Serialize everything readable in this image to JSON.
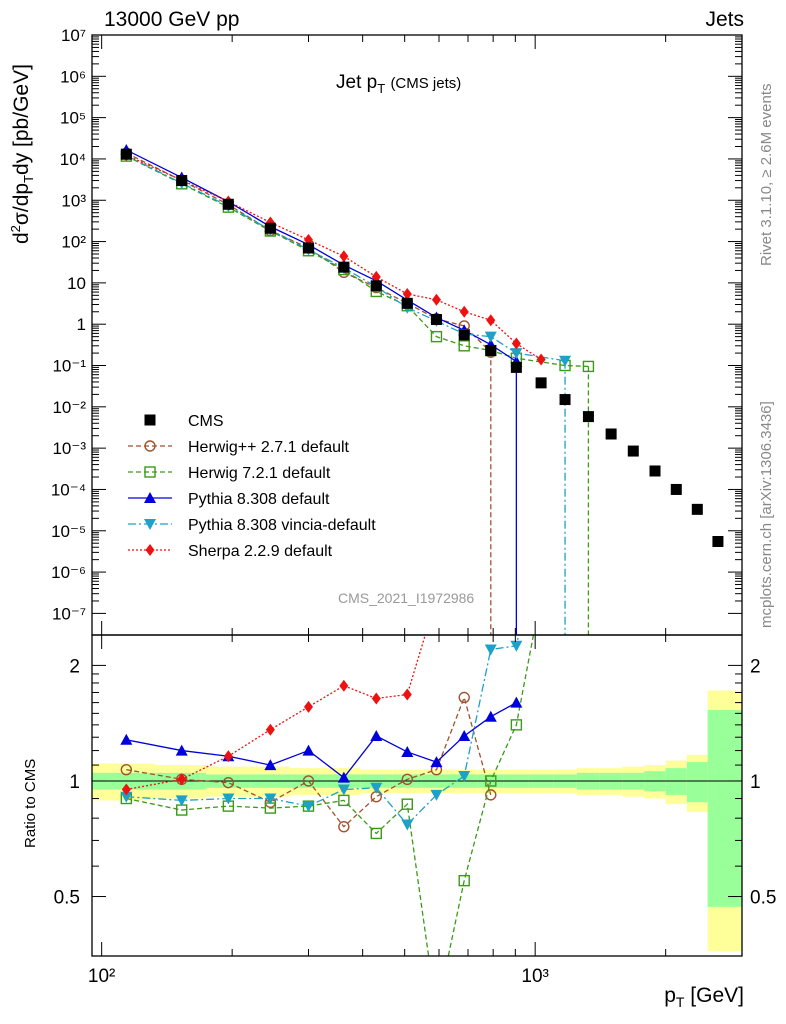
{
  "header": {
    "left": "13000 GeV pp",
    "right": "Jets"
  },
  "side": {
    "top": "Rivet 3.1.10, ≥ 2.6M events",
    "bottom": "mcplots.cern.ch [arXiv:1306.3436]"
  },
  "axes": {
    "ylabel_top": "d²σ/dp_T dy [pb/GeV]",
    "ylabel_bottom": "Ratio to CMS",
    "xlabel": "p_T [GeV]"
  },
  "plot_title": {
    "main": "Jet p",
    "sub": "T",
    "extra": "(CMS jets)"
  },
  "analysis_id": "CMS_2021_I1972986",
  "colors": {
    "cms": "#000000",
    "herwigpp": "#a0522d",
    "herwig7": "#3a9a1a",
    "pythia": "#0000dd",
    "vincia": "#1ea0c8",
    "sherpa": "#ee1111",
    "band_outer": "#ffff99",
    "band_inner": "#99ff99"
  },
  "chart_data": {
    "type": "line",
    "x_scale": "log",
    "xlim": [
      95,
      3000
    ],
    "x_ticks": [
      "10²",
      "10³"
    ],
    "top": {
      "y_scale": "log",
      "ylim": [
        3e-08,
        10000000.0
      ],
      "y_ticks": [
        "10⁻⁷",
        "10⁻⁶",
        "10⁻⁵",
        "10⁻⁴",
        "10⁻³",
        "10⁻²",
        "10⁻¹",
        "1",
        "10",
        "10²",
        "10³",
        "10⁴",
        "10⁵",
        "10⁶",
        "10⁷"
      ]
    },
    "bottom": {
      "ylim": [
        0.35,
        2.4
      ],
      "y_ticks": [
        "0.5",
        "1",
        "2"
      ]
    },
    "legend_position": "lower-left",
    "series": [
      {
        "name": "CMS",
        "key": "cms",
        "x": [
          114,
          153,
          196,
          245,
          300,
          362,
          430,
          507,
          592,
          686,
          790,
          905,
          1032,
          1172,
          1327,
          1497,
          1684,
          1890,
          2116,
          2366,
          2640
        ],
        "y": [
          13000,
          3000,
          800,
          210,
          70,
          24,
          8.5,
          3.2,
          1.3,
          0.55,
          0.23,
          0.09,
          0.038,
          0.015,
          0.0058,
          0.0022,
          0.00085,
          0.00028,
          0.0001,
          3.3e-05,
          5.5e-06
        ],
        "ratio": [
          1,
          1,
          1,
          1,
          1,
          1,
          1,
          1,
          1,
          1,
          1,
          1,
          1,
          1,
          1,
          1,
          1,
          1,
          1,
          1,
          1
        ]
      },
      {
        "name": "Herwig++ 2.7.1 default",
        "key": "herwigpp",
        "x": [
          114,
          153,
          196,
          245,
          300,
          362,
          430,
          507,
          592,
          686,
          790
        ],
        "y": [
          13900,
          3000,
          790,
          185,
          70,
          18,
          7.7,
          3.2,
          1.35,
          0.91,
          0.21
        ],
        "ratio": [
          1.07,
          1.01,
          0.99,
          0.88,
          1.0,
          0.76,
          0.91,
          1.01,
          1.07,
          1.65,
          0.92
        ]
      },
      {
        "name": "Herwig 7.2.1 default",
        "key": "herwig7",
        "x": [
          114,
          153,
          196,
          245,
          300,
          362,
          430,
          507,
          592,
          686,
          790,
          905,
          1172,
          1327
        ],
        "y": [
          11700,
          2500,
          680,
          180,
          60,
          21,
          6.2,
          2.8,
          0.5,
          0.3,
          0.23,
          0.15,
          0.1,
          0.095
        ],
        "ratio": [
          0.9,
          0.84,
          0.86,
          0.85,
          0.86,
          0.89,
          0.73,
          0.87,
          0.25,
          0.55,
          1.0,
          1.4,
          6.5,
          16
        ]
      },
      {
        "name": "Pythia 8.308 default",
        "key": "pythia",
        "x": [
          114,
          153,
          196,
          245,
          300,
          362,
          430,
          507,
          592,
          686,
          790,
          905
        ],
        "y": [
          16500,
          3550,
          920,
          230,
          84,
          27,
          11.2,
          3.85,
          1.45,
          0.71,
          0.32,
          0.125
        ],
        "ratio": [
          1.28,
          1.2,
          1.16,
          1.1,
          1.2,
          1.02,
          1.31,
          1.19,
          1.12,
          1.31,
          1.47,
          1.6
        ]
      },
      {
        "name": "Pythia 8.308 vincia-default",
        "key": "vincia",
        "x": [
          114,
          153,
          196,
          245,
          300,
          362,
          430,
          507,
          592,
          686,
          790,
          905,
          1172
        ],
        "y": [
          12000,
          2600,
          720,
          190,
          64,
          23,
          8.1,
          2.5,
          1.2,
          0.58,
          0.5,
          0.2,
          0.13
        ],
        "ratio": [
          0.91,
          0.89,
          0.9,
          0.9,
          0.86,
          0.95,
          0.96,
          0.77,
          0.92,
          1.03,
          2.2,
          2.25,
          8.5
        ]
      },
      {
        "name": "Sherpa 2.2.9 default",
        "key": "sherpa",
        "x": [
          114,
          153,
          196,
          245,
          300,
          362,
          430,
          507,
          592,
          686,
          790,
          905,
          1032
        ],
        "y": [
          12300,
          3050,
          930,
          290,
          110,
          44,
          14,
          5.4,
          3.9,
          2.0,
          1.25,
          0.34,
          0.14
        ],
        "ratio": [
          0.95,
          1.01,
          1.16,
          1.36,
          1.56,
          1.77,
          1.64,
          1.68,
          3.0,
          3.6,
          5.4,
          3.8,
          3.7
        ]
      }
    ],
    "band": {
      "x_edges": [
        95,
        133,
        174,
        220,
        272,
        330,
        395,
        468,
        548,
        638,
        737,
        846,
        967,
        1101,
        1248,
        1410,
        1588,
        1784,
        2000,
        2238,
        2500,
        2800,
        3000
      ],
      "outer": [
        0.11,
        0.1,
        0.09,
        0.09,
        0.08,
        0.08,
        0.07,
        0.07,
        0.07,
        0.07,
        0.07,
        0.07,
        0.07,
        0.07,
        0.08,
        0.08,
        0.09,
        0.1,
        0.13,
        0.17,
        0.72,
        0.72
      ],
      "inner": [
        0.05,
        0.05,
        0.04,
        0.04,
        0.04,
        0.04,
        0.04,
        0.04,
        0.04,
        0.04,
        0.04,
        0.04,
        0.04,
        0.04,
        0.05,
        0.05,
        0.05,
        0.06,
        0.08,
        0.12,
        0.53,
        0.53
      ]
    }
  }
}
